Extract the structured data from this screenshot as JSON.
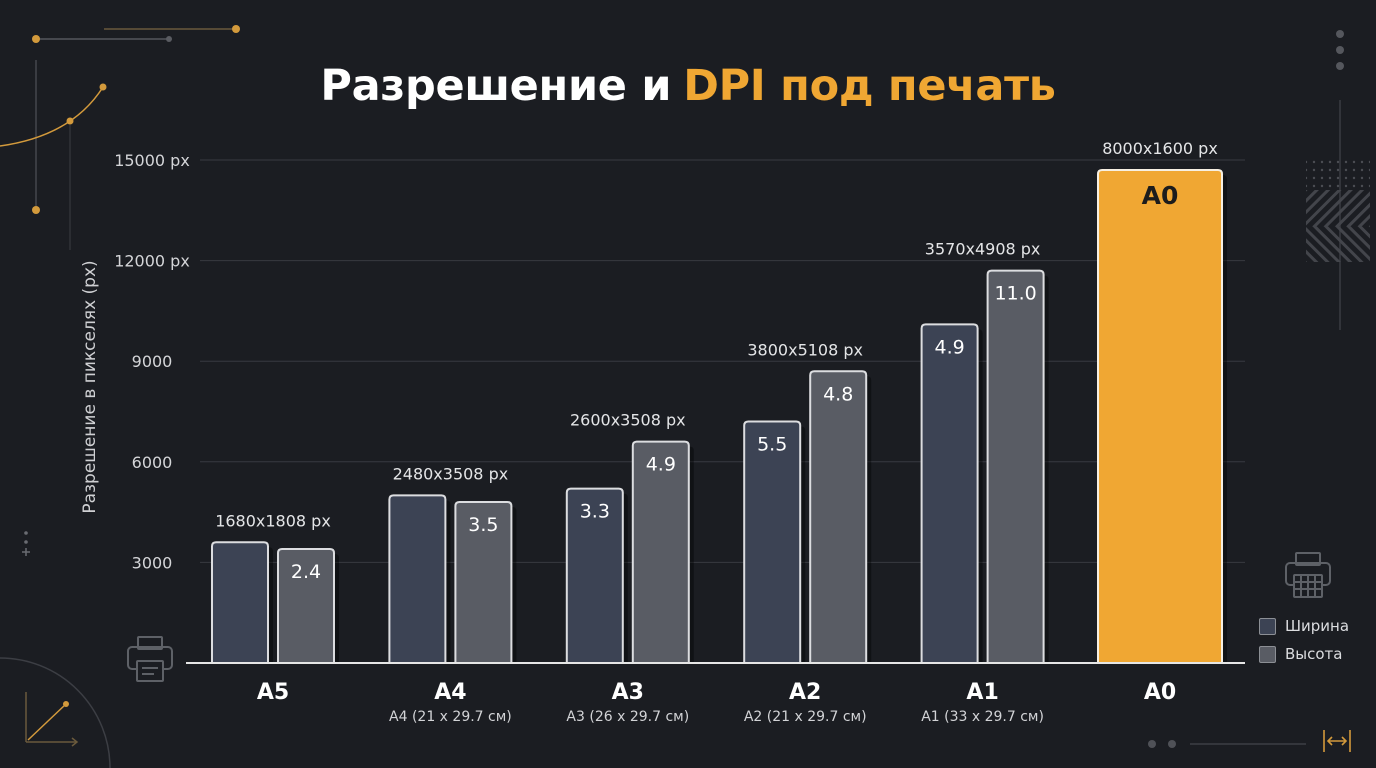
{
  "chart_data": {
    "type": "bar",
    "title_parts": [
      "Разрешение и",
      "DPI под печать"
    ],
    "ylabel": "Разрешение в пикселях (px)",
    "ylim": [
      0,
      15000
    ],
    "yticks": [
      3000,
      6000,
      9000,
      12000,
      15000
    ],
    "ytick_labels": [
      "3000",
      "6000",
      "9000",
      "12000 px",
      "15000 px"
    ],
    "grid": true,
    "legend_position": "bottom-right",
    "categories": [
      "A5",
      "A4",
      "A3",
      "A2",
      "A1",
      "A0"
    ],
    "category_sublabels": [
      null,
      "A4 (21 x 29.7 см)",
      "A3 (26 x 29.7 см)",
      "A2 (21 x 29.7 см)",
      "A1 (33 x 29.7 см)",
      null
    ],
    "group_labels": [
      "1680x1808 px",
      "2480x3508 px",
      "2600x3508 px",
      "3800x5108 px",
      "3570x4908 px",
      "8000x1600 px"
    ],
    "series": [
      {
        "name": "Ширина",
        "color": "#3c4354",
        "values": [
          3600,
          5000,
          5200,
          7200,
          10100,
          null
        ],
        "bar_labels": [
          null,
          null,
          "3.3",
          "5.5",
          "4.9",
          null
        ]
      },
      {
        "name": "Высота",
        "color": "#595c64",
        "values": [
          3400,
          4800,
          6600,
          8700,
          11700,
          null
        ],
        "bar_labels": [
          "2.4",
          "3.5",
          "4.9",
          "4.8",
          "11.0",
          null
        ]
      }
    ],
    "highlight_bar": {
      "category_index": 5,
      "value": 14700,
      "label": "A0",
      "color": "#f0a733"
    }
  },
  "colors": {
    "background": "#1b1d22",
    "accent": "#f0a733",
    "text": "#ffffff",
    "muted_text": "#d4d5d8",
    "gridline": "#383a41",
    "bar_border": "#dcdde0"
  },
  "icons": {
    "bottom_left": "printer-icon",
    "right": "printer-icon",
    "bottom_right": "width-arrow-icon"
  }
}
